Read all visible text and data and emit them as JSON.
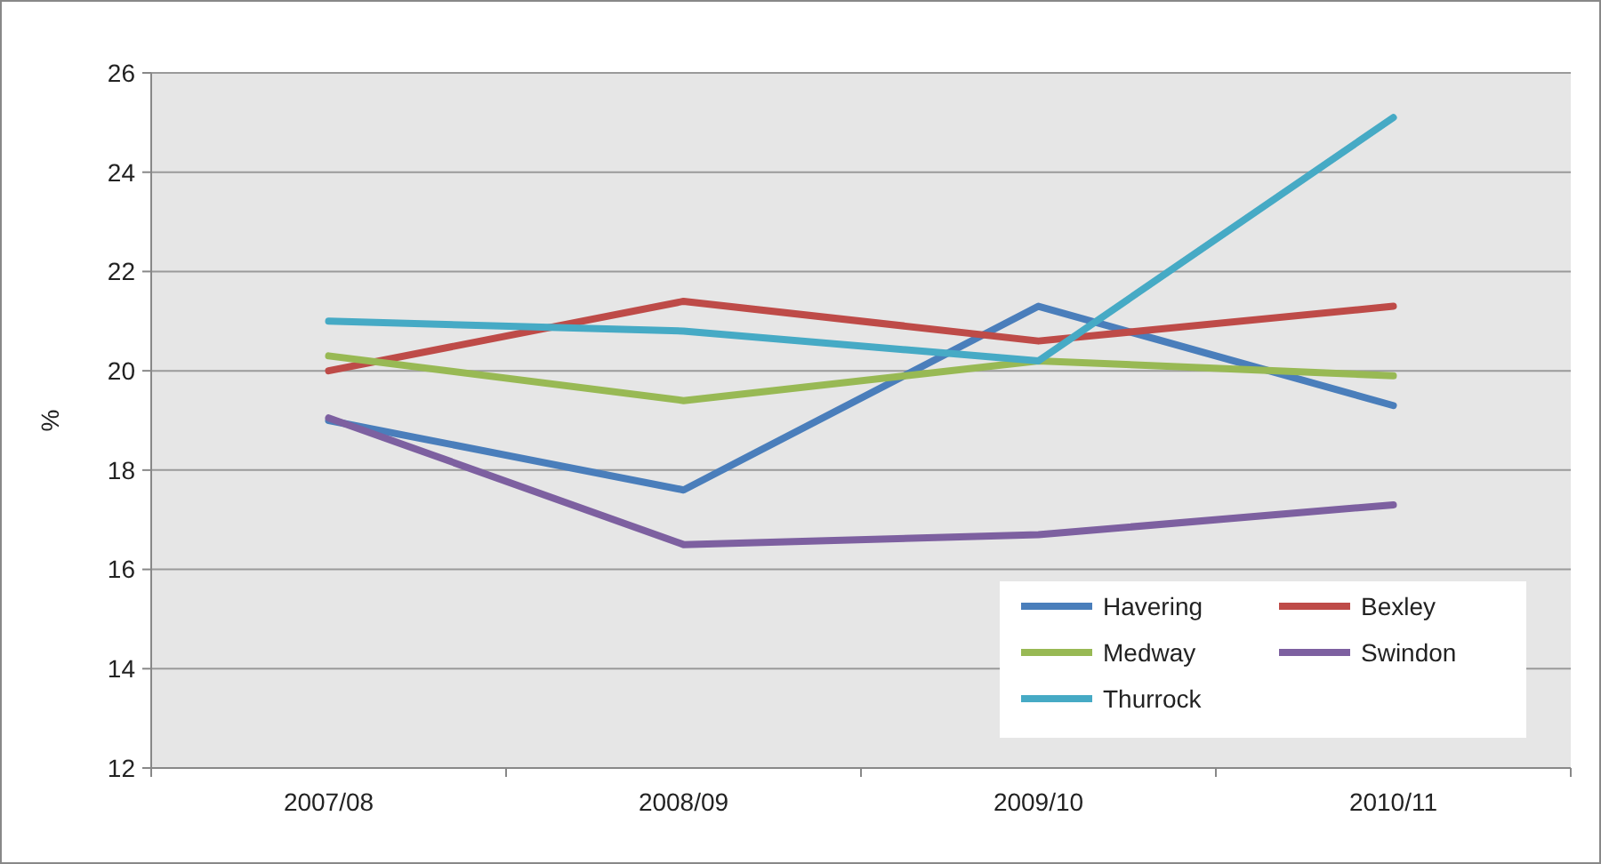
{
  "chart_data": {
    "type": "line",
    "ylabel": "%",
    "categories": [
      "2007/08",
      "2008/09",
      "2009/10",
      "2010/11"
    ],
    "ylim": [
      12,
      26
    ],
    "yticks": [
      12,
      14,
      16,
      18,
      20,
      22,
      24,
      26
    ],
    "grid": "y",
    "legend": "bottom right",
    "marker": "none",
    "line_style": "solid",
    "series": [
      {
        "name": "Havering",
        "color": "#4a7ebb",
        "values": [
          19.0,
          17.6,
          21.3,
          19.3
        ]
      },
      {
        "name": "Bexley",
        "color": "#be4b48",
        "values": [
          20.0,
          21.4,
          20.6,
          21.3
        ]
      },
      {
        "name": "Medway",
        "color": "#98b954",
        "values": [
          20.3,
          19.4,
          20.2,
          19.9
        ]
      },
      {
        "name": "Swindon",
        "color": "#7d60a0",
        "values": [
          19.05,
          16.5,
          16.7,
          17.3
        ]
      },
      {
        "name": "Thurrock",
        "color": "#46aac5",
        "values": [
          21.0,
          20.8,
          20.2,
          25.1
        ]
      }
    ]
  }
}
